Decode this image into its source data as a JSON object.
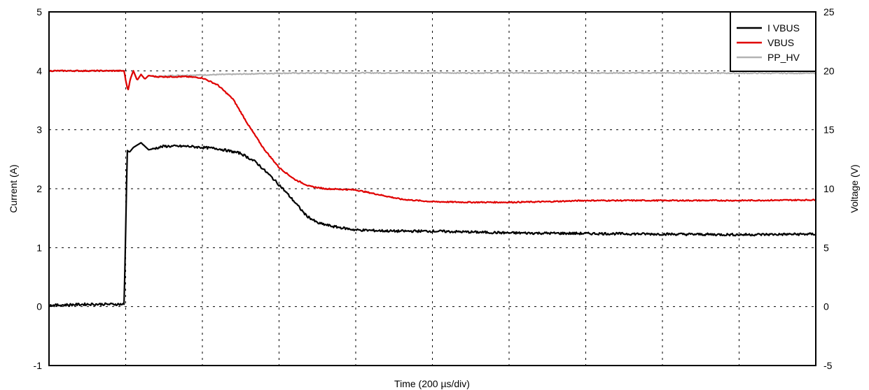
{
  "chart_data": {
    "type": "line",
    "xlabel": "Time (200 µs/div)",
    "ylabel_left": "Current (A)",
    "ylabel_right": "Voltage (V)",
    "x_divisions": 10,
    "x_unit": "div",
    "ylim_left": [
      -1,
      5
    ],
    "ylim_right": [
      -5,
      25
    ],
    "yticks_left": [
      "-1",
      "0",
      "1",
      "2",
      "3",
      "4",
      "5"
    ],
    "yticks_right": [
      "-5",
      "0",
      "5",
      "10",
      "15",
      "20",
      "25"
    ],
    "grid": true,
    "legend_position": "top-right",
    "series": [
      {
        "name": "I VBUS",
        "axis": "left",
        "color": "#000000",
        "x": [
          0,
          0.5,
          0.98,
          1.0,
          1.02,
          1.05,
          1.1,
          1.2,
          1.3,
          1.5,
          1.8,
          2.0,
          2.2,
          2.5,
          2.7,
          2.9,
          3.05,
          3.2,
          3.35,
          3.5,
          3.7,
          4.0,
          4.5,
          5.0,
          6.0,
          7.0,
          8.0,
          9.0,
          10.0
        ],
        "y": [
          0.02,
          0.04,
          0.04,
          1.3,
          2.65,
          2.62,
          2.7,
          2.78,
          2.66,
          2.72,
          2.72,
          2.7,
          2.68,
          2.6,
          2.45,
          2.2,
          2.0,
          1.78,
          1.55,
          1.42,
          1.36,
          1.3,
          1.28,
          1.28,
          1.25,
          1.24,
          1.23,
          1.22,
          1.23
        ]
      },
      {
        "name": "VBUS",
        "axis": "right",
        "color": "#e00000",
        "x": [
          0,
          0.98,
          1.0,
          1.03,
          1.06,
          1.1,
          1.15,
          1.2,
          1.25,
          1.3,
          1.4,
          1.6,
          1.8,
          2.0,
          2.2,
          2.4,
          2.6,
          2.8,
          3.0,
          3.2,
          3.4,
          3.6,
          3.8,
          4.0,
          4.3,
          4.6,
          5.0,
          5.5,
          6.0,
          6.5,
          7.0,
          8.0,
          9.0,
          10.0
        ],
        "y": [
          20.0,
          20.0,
          19.2,
          18.3,
          19.3,
          20.0,
          19.2,
          19.7,
          19.3,
          19.6,
          19.5,
          19.5,
          19.5,
          19.4,
          18.8,
          17.6,
          15.4,
          13.4,
          11.8,
          10.8,
          10.2,
          10.0,
          9.95,
          9.9,
          9.5,
          9.1,
          8.9,
          8.85,
          8.85,
          8.9,
          9.0,
          9.0,
          9.0,
          9.05
        ]
      },
      {
        "name": "PP_HV",
        "axis": "right",
        "color": "#b3b3b3",
        "x": [
          0,
          0.98,
          1.0,
          1.03,
          1.06,
          1.1,
          1.15,
          1.2,
          1.25,
          1.3,
          1.4,
          1.6,
          2.0,
          3.0,
          4.0,
          5.0,
          6.0,
          7.0,
          8.0,
          9.0,
          10.0
        ],
        "y": [
          20.0,
          20.0,
          19.2,
          18.3,
          19.3,
          20.0,
          19.2,
          19.7,
          19.3,
          19.6,
          19.5,
          19.6,
          19.65,
          19.8,
          19.82,
          19.82,
          19.82,
          19.82,
          19.82,
          19.8,
          19.8
        ]
      }
    ]
  }
}
